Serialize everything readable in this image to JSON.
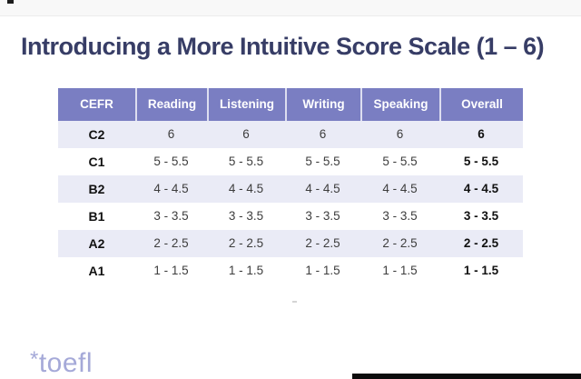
{
  "slide": {
    "title": "Introducing a More Intuitive Score Scale (1 – 6)",
    "logo_asterisk": "*",
    "logo_text": "toefl"
  },
  "table": {
    "columns": [
      "CEFR",
      "Reading",
      "Listening",
      "Writing",
      "Speaking",
      "Overall"
    ],
    "rows": [
      {
        "cefr": "C2",
        "reading": "6",
        "listening": "6",
        "writing": "6",
        "speaking": "6",
        "overall": "6"
      },
      {
        "cefr": "C1",
        "reading": "5 - 5.5",
        "listening": "5 - 5.5",
        "writing": "5 - 5.5",
        "speaking": "5 - 5.5",
        "overall": "5 - 5.5"
      },
      {
        "cefr": "B2",
        "reading": "4 - 4.5",
        "listening": "4 - 4.5",
        "writing": "4 - 4.5",
        "speaking": "4 - 4.5",
        "overall": "4 - 4.5"
      },
      {
        "cefr": "B1",
        "reading": "3 - 3.5",
        "listening": "3 - 3.5",
        "writing": "3 - 3.5",
        "speaking": "3 - 3.5",
        "overall": "3 - 3.5"
      },
      {
        "cefr": "A2",
        "reading": "2 - 2.5",
        "listening": "2 - 2.5",
        "writing": "2 - 2.5",
        "speaking": "2 - 2.5",
        "overall": "2 - 2.5"
      },
      {
        "cefr": "A1",
        "reading": "1 - 1.5",
        "listening": "1 - 1.5",
        "writing": "1 - 1.5",
        "speaking": "1 - 1.5",
        "overall": "1 - 1.5"
      }
    ]
  },
  "colors": {
    "header_bg": "#7A7EC2",
    "alt_row_bg": "#EAEBF6",
    "title_color": "#373D66",
    "logo_color": "#A5A9D8",
    "bottom_bar": "#0C0C0C"
  }
}
